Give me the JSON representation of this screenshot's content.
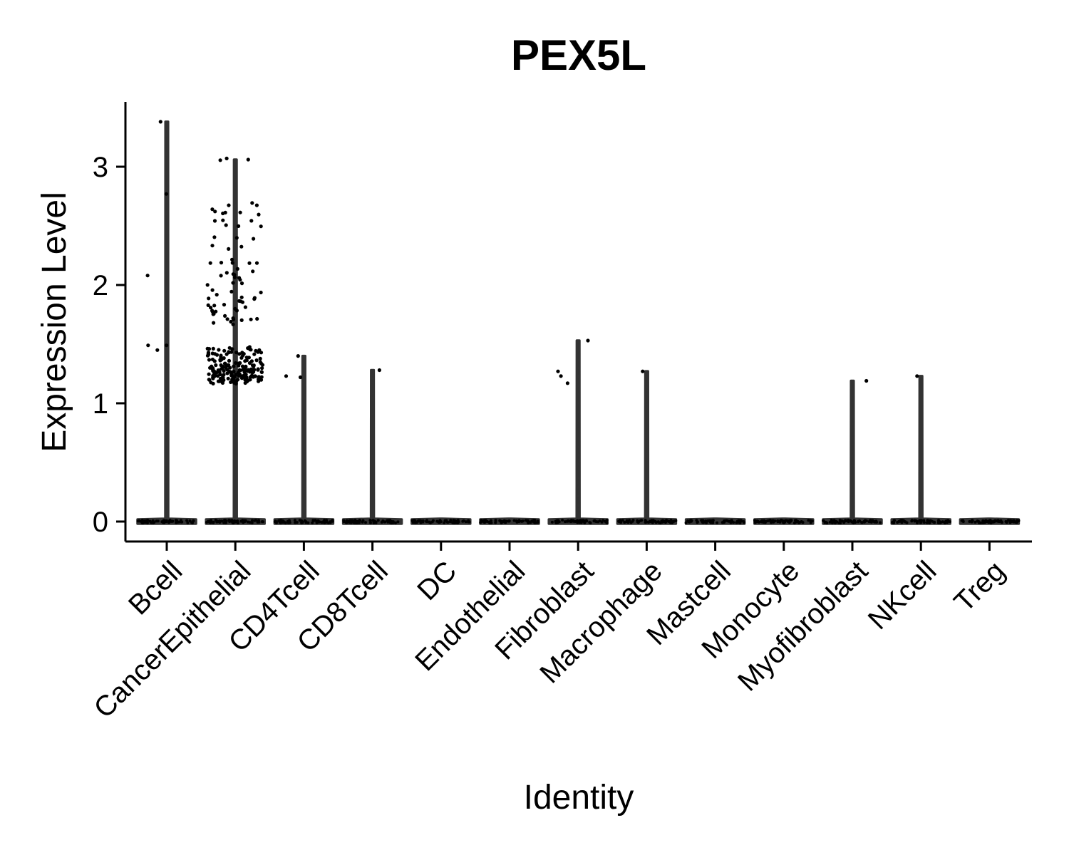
{
  "chart_data": {
    "type": "violin",
    "title": "PEX5L",
    "xlabel": "Identity",
    "ylabel": "Expression Level",
    "ylim": [
      -0.16,
      3.55
    ],
    "y_ticks": [
      0,
      1,
      2,
      3
    ],
    "grid": false,
    "legend": "none",
    "colors": {
      "violin": "#333333",
      "points": "#000000",
      "axis": "#000000"
    },
    "categories": [
      "Bcell",
      "CancerEpithelial",
      "CD4Tcell",
      "CD8Tcell",
      "DC",
      "Endothelial",
      "Fibroblast",
      "Macrophage",
      "Mastcell",
      "Monocyte",
      "Myofibroblast",
      "NKcell",
      "Treg"
    ],
    "max_values": [
      3.38,
      3.06,
      1.4,
      1.28,
      0,
      0,
      1.53,
      1.27,
      0,
      0,
      1.19,
      1.23,
      0
    ],
    "nonzero_points": [
      [
        1.49,
        2.08,
        1.45,
        2.77,
        1.49,
        3.38
      ],
      [
        3.06,
        2.69,
        2.63,
        2.6,
        2.55,
        2.5,
        2.4,
        2.32,
        2.2,
        2.18,
        2.12,
        2.08,
        2.05,
        2.0,
        1.95,
        1.9,
        1.88,
        1.85,
        1.82,
        1.8,
        1.77,
        1.75,
        1.72,
        1.7,
        1.68,
        1.46,
        1.44,
        1.42,
        1.4,
        1.37,
        1.35,
        1.33,
        1.31,
        1.3,
        1.29,
        1.28,
        1.27,
        1.26,
        1.25,
        1.24,
        1.23,
        1.22,
        1.21,
        1.2,
        1.19,
        1.18
      ],
      [
        1.4,
        1.23,
        1.22
      ],
      [
        1.28
      ],
      [],
      [],
      [
        1.27,
        1.53,
        1.17,
        1.23
      ],
      [
        1.27
      ],
      [],
      [],
      [
        1.19
      ],
      [
        1.23
      ],
      []
    ]
  }
}
